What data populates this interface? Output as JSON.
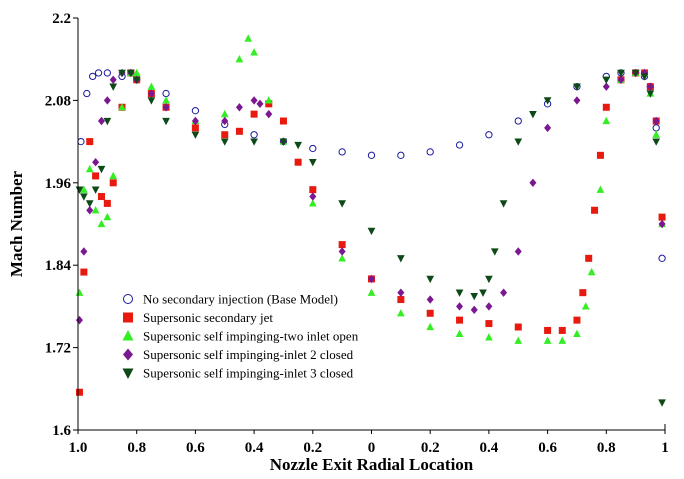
{
  "chart_data": {
    "type": "scatter",
    "title": "",
    "xlabel": "Nozzle Exit Radial Location",
    "ylabel": "Mach Number",
    "xlim": [
      -1,
      1
    ],
    "ylim": [
      1.6,
      2.2
    ],
    "x_tick_values": [
      -1.0,
      -0.8,
      -0.6,
      -0.4,
      -0.2,
      0,
      0.2,
      0.4,
      0.6,
      0.8,
      1.0
    ],
    "x_tick_labels": [
      "1.0",
      "0.8",
      "0.6",
      "0.4",
      "0.2",
      "0",
      "0.2",
      "0.4",
      "0.6",
      "0.8",
      "1"
    ],
    "y_ticks": [
      "1.6",
      "1.72",
      "1.84",
      "1.96",
      "2.08",
      "2.2"
    ],
    "y_tick_values": [
      1.6,
      1.72,
      1.84,
      1.96,
      2.08,
      2.2
    ],
    "grid": false,
    "legend_position": "bottom-left",
    "series": [
      {
        "name": "No secondary injection (Base Model)",
        "marker": "open-circle",
        "color": "#1a1a9e",
        "x": [
          -0.99,
          -0.97,
          -0.95,
          -0.93,
          -0.9,
          -0.85,
          -0.8,
          -0.7,
          -0.6,
          -0.5,
          -0.4,
          -0.3,
          -0.2,
          -0.1,
          0.0,
          0.1,
          0.2,
          0.3,
          0.4,
          0.5,
          0.6,
          0.7,
          0.8,
          0.85,
          0.9,
          0.93,
          0.95,
          0.97,
          0.99
        ],
        "y": [
          2.02,
          2.09,
          2.115,
          2.12,
          2.12,
          2.115,
          2.11,
          2.09,
          2.065,
          2.045,
          2.03,
          2.02,
          2.01,
          2.005,
          2.0,
          2.0,
          2.005,
          2.015,
          2.03,
          2.05,
          2.075,
          2.1,
          2.115,
          2.12,
          2.12,
          2.115,
          2.1,
          2.04,
          1.85
        ]
      },
      {
        "name": "Supersonic secondary jet",
        "marker": "square",
        "color": "#e8190f",
        "x": [
          -0.995,
          -0.98,
          -0.96,
          -0.94,
          -0.92,
          -0.9,
          -0.88,
          -0.85,
          -0.82,
          -0.8,
          -0.75,
          -0.7,
          -0.6,
          -0.5,
          -0.45,
          -0.4,
          -0.35,
          -0.3,
          -0.25,
          -0.2,
          -0.1,
          0.0,
          0.1,
          0.2,
          0.3,
          0.4,
          0.5,
          0.6,
          0.65,
          0.7,
          0.72,
          0.74,
          0.76,
          0.78,
          0.8,
          0.85,
          0.9,
          0.93,
          0.95,
          0.97,
          0.99
        ],
        "y": [
          1.655,
          1.83,
          2.02,
          1.97,
          1.94,
          1.93,
          1.96,
          2.07,
          2.12,
          2.11,
          2.09,
          2.07,
          2.04,
          2.03,
          2.035,
          2.06,
          2.075,
          2.05,
          1.99,
          1.95,
          1.87,
          1.82,
          1.79,
          1.77,
          1.76,
          1.755,
          1.75,
          1.745,
          1.745,
          1.76,
          1.8,
          1.85,
          1.92,
          2.0,
          2.07,
          2.11,
          2.12,
          2.12,
          2.1,
          2.05,
          1.91
        ]
      },
      {
        "name": "Supersonic self impinging-two inlet open",
        "marker": "triangle-up",
        "color": "#33ee22",
        "x": [
          -0.995,
          -0.98,
          -0.96,
          -0.94,
          -0.92,
          -0.9,
          -0.88,
          -0.85,
          -0.82,
          -0.8,
          -0.75,
          -0.7,
          -0.6,
          -0.5,
          -0.45,
          -0.42,
          -0.4,
          -0.35,
          -0.3,
          -0.2,
          -0.1,
          0.0,
          0.1,
          0.2,
          0.3,
          0.4,
          0.5,
          0.6,
          0.65,
          0.7,
          0.73,
          0.75,
          0.78,
          0.8,
          0.85,
          0.9,
          0.93,
          0.95,
          0.97,
          0.99
        ],
        "y": [
          1.8,
          1.95,
          1.98,
          1.92,
          1.9,
          1.91,
          1.97,
          2.07,
          2.12,
          2.12,
          2.1,
          2.08,
          2.05,
          2.06,
          2.14,
          2.17,
          2.15,
          2.08,
          2.02,
          1.93,
          1.85,
          1.8,
          1.77,
          1.75,
          1.74,
          1.735,
          1.73,
          1.73,
          1.73,
          1.74,
          1.78,
          1.83,
          1.95,
          2.05,
          2.11,
          2.12,
          2.12,
          2.09,
          2.03,
          1.9
        ]
      },
      {
        "name": "Supersonic self impinging-inlet 2 closed",
        "marker": "diamond",
        "color": "#7b1890",
        "x": [
          -0.995,
          -0.98,
          -0.96,
          -0.94,
          -0.92,
          -0.9,
          -0.88,
          -0.85,
          -0.82,
          -0.8,
          -0.75,
          -0.7,
          -0.6,
          -0.5,
          -0.45,
          -0.4,
          -0.38,
          -0.35,
          -0.3,
          -0.2,
          -0.1,
          0.0,
          0.1,
          0.2,
          0.3,
          0.35,
          0.4,
          0.45,
          0.5,
          0.55,
          0.6,
          0.7,
          0.8,
          0.85,
          0.9,
          0.93,
          0.95,
          0.97,
          0.99
        ],
        "y": [
          1.76,
          1.86,
          1.92,
          1.99,
          2.05,
          2.08,
          2.11,
          2.12,
          2.12,
          2.11,
          2.09,
          2.07,
          2.05,
          2.05,
          2.07,
          2.08,
          2.075,
          2.06,
          2.02,
          1.94,
          1.86,
          1.82,
          1.8,
          1.79,
          1.78,
          1.775,
          1.78,
          1.8,
          1.86,
          1.96,
          2.04,
          2.08,
          2.1,
          2.11,
          2.12,
          2.12,
          2.1,
          2.05,
          1.9
        ]
      },
      {
        "name": "Supersonic self impinging-inlet 3 closed",
        "marker": "triangle-down",
        "color": "#0e4a18",
        "x": [
          -0.995,
          -0.98,
          -0.96,
          -0.94,
          -0.92,
          -0.9,
          -0.88,
          -0.85,
          -0.82,
          -0.8,
          -0.75,
          -0.7,
          -0.6,
          -0.5,
          -0.4,
          -0.3,
          -0.25,
          -0.2,
          -0.1,
          0.0,
          0.1,
          0.2,
          0.3,
          0.35,
          0.38,
          0.4,
          0.42,
          0.45,
          0.5,
          0.55,
          0.6,
          0.7,
          0.8,
          0.85,
          0.9,
          0.93,
          0.95,
          0.97,
          0.99
        ],
        "y": [
          1.95,
          1.94,
          1.93,
          1.95,
          1.98,
          2.05,
          2.1,
          2.12,
          2.12,
          2.11,
          2.08,
          2.05,
          2.03,
          2.02,
          2.02,
          2.02,
          2.015,
          1.99,
          1.93,
          1.89,
          1.85,
          1.82,
          1.8,
          1.795,
          1.8,
          1.82,
          1.86,
          1.93,
          2.02,
          2.06,
          2.08,
          2.1,
          2.11,
          2.12,
          2.12,
          2.115,
          2.09,
          2.02,
          1.64
        ]
      }
    ]
  }
}
